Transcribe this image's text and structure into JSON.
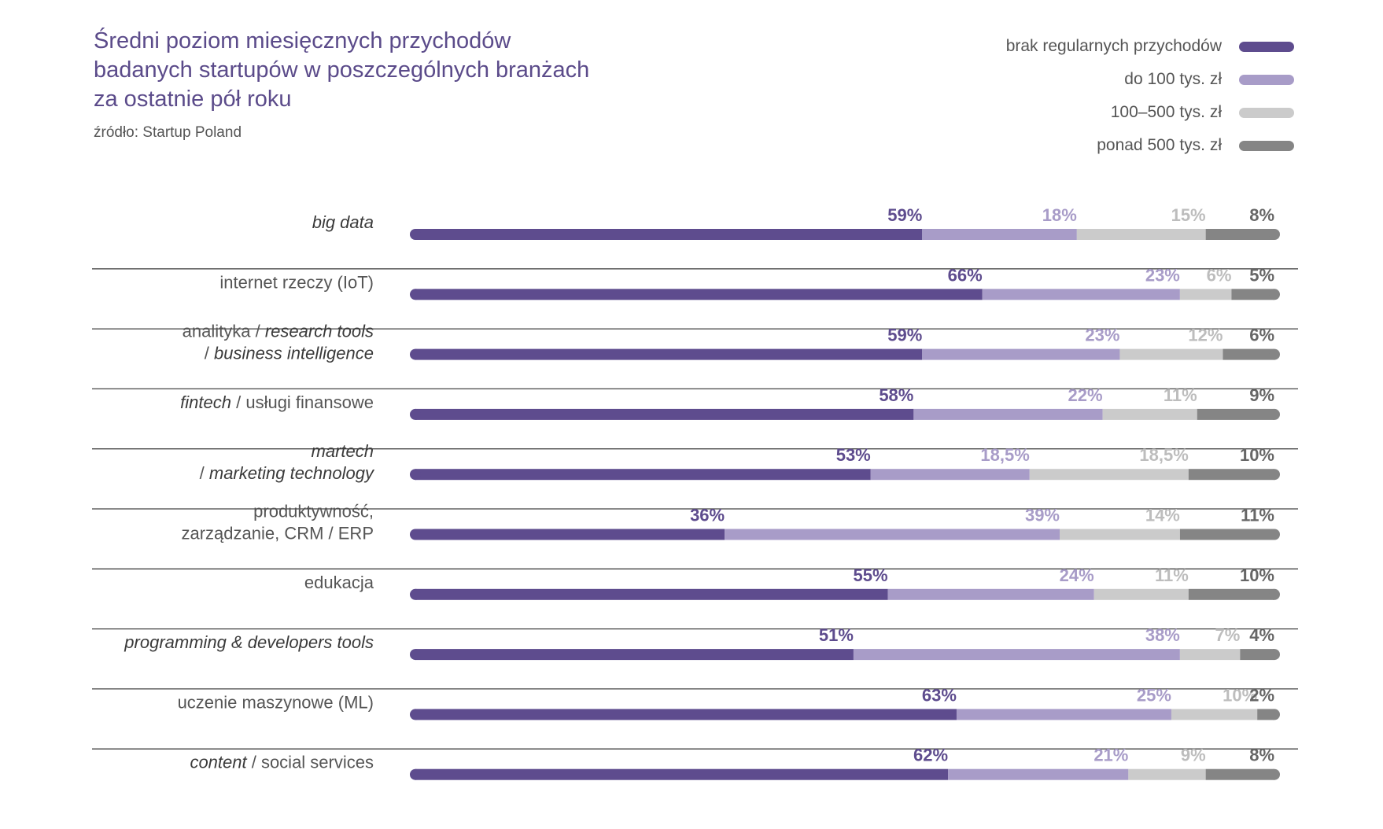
{
  "title_lines": [
    "Średni poziom miesięcznych przychodów",
    "badanych startupów w poszczególnych branżach",
    "za ostatnie pół roku"
  ],
  "source": "źródło: Startup Poland",
  "colors": {
    "brak": "#5e4c8e",
    "do100": "#a89cc8",
    "100_500": "#cbcbcb",
    "ponad500": "#858585",
    "title": "#5b4b8a",
    "text": "#555555",
    "divider": "#444444"
  },
  "chart_data": {
    "type": "bar",
    "orientation": "horizontal",
    "stacked": true,
    "title": "Średni poziom miesięcznych przychodów badanych startupów w poszczególnych branżach za ostatnie pół roku",
    "legend_position": "top-right",
    "categories": [
      [
        {
          "t": "big data",
          "i": true
        }
      ],
      [
        {
          "t": "internet rzeczy (IoT)",
          "i": false
        }
      ],
      [
        {
          "t": "analityka / ",
          "i": false
        },
        {
          "t": "research tools",
          "i": true
        },
        {
          "t": "|"
        },
        {
          "t": "/ ",
          "i": false
        },
        {
          "t": "business intelligence",
          "i": true
        }
      ],
      [
        {
          "t": "fintech",
          "i": true
        },
        {
          "t": " / usługi finansowe",
          "i": false
        }
      ],
      [
        {
          "t": "martech",
          "i": true
        },
        {
          "t": "|"
        },
        {
          "t": "/ ",
          "i": false
        },
        {
          "t": "marketing technology",
          "i": true
        }
      ],
      [
        {
          "t": "produktywność,",
          "i": false
        },
        {
          "t": "|"
        },
        {
          "t": "zarządzanie, CRM / ERP",
          "i": false
        }
      ],
      [
        {
          "t": "edukacja",
          "i": false
        }
      ],
      [
        {
          "t": "programming & developers tools",
          "i": true
        }
      ],
      [
        {
          "t": "uczenie maszynowe (ML)",
          "i": false
        }
      ],
      [
        {
          "t": "content",
          "i": true
        },
        {
          "t": " / social services",
          "i": false
        }
      ]
    ],
    "series": [
      {
        "name": "brak regularnych przychodów",
        "color": "#5e4c8e",
        "values": [
          59,
          66,
          59,
          58,
          53,
          36,
          55,
          51,
          63,
          62
        ],
        "labels": [
          "59%",
          "66%",
          "59%",
          "58%",
          "53%",
          "36%",
          "55%",
          "51%",
          "63%",
          "62%"
        ]
      },
      {
        "name": "do 100 tys. zł",
        "color": "#a89cc8",
        "values": [
          18,
          23,
          23,
          22,
          18.5,
          39,
          24,
          38,
          25,
          21
        ],
        "labels": [
          "18%",
          "23%",
          "23%",
          "22%",
          "18,5%",
          "39%",
          "24%",
          "38%",
          "25%",
          "21%"
        ]
      },
      {
        "name": "100–500 tys. zł",
        "color": "#cbcbcb",
        "values": [
          15,
          6,
          12,
          11,
          18.5,
          14,
          11,
          7,
          10,
          9
        ],
        "labels": [
          "15%",
          "6%",
          "12%",
          "11%",
          "18,5%",
          "14%",
          "11%",
          "7%",
          "10%",
          "9%"
        ]
      },
      {
        "name": "ponad 500 tys. zł",
        "color": "#858585",
        "values": [
          8,
          5,
          6,
          9,
          10,
          11,
          10,
          4,
          2,
          8
        ],
        "labels": [
          "8%",
          "5%",
          "6%",
          "9%",
          "10%",
          "11%",
          "10%",
          "4%",
          "2%",
          "8%"
        ]
      }
    ],
    "label_colors": [
      "#5e4c8e",
      "#a89cc8",
      "#bdbdbd",
      "#666666"
    ],
    "xlim": [
      0,
      100
    ]
  }
}
